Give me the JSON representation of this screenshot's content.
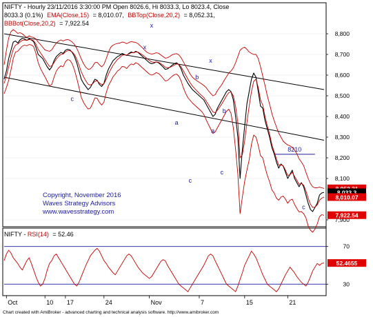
{
  "header": {
    "line1_prefix": "NIFTY - Hourly 23/11/2016 3:30:00 PM Open 8026.6, Hi 8033.3, Lo 8023.4, Close",
    "line2_black": "8033.3 (0.1%)",
    "line2_ema": "EMA(Close,15)",
    "line2_ema_value": "= 8,010.07,",
    "line2_bbtop": "BBTop(Close,20,2)",
    "line2_bbtop_value": "= 8,052.31,",
    "line3_bbbot": "BBBot(Close,20,2)",
    "line3_bbbot_value": "= 7,922.54"
  },
  "copyright": {
    "line1": "Copyright, November 2016",
    "line2": "Waves Strategy Advisors",
    "line3": "www.wavesstrategy.com"
  },
  "footer": "Chart created with AmiBroker - advanced charting and technical analysis software. http://www.amibroker.com",
  "colors": {
    "price": "#000000",
    "bands": "#c00000",
    "wave_labels": "#1a1aa0",
    "copyright_text": "#1a1aa0",
    "price_badge": "#000000",
    "band_badge": "#e00000",
    "rsi_line": "#c00000"
  },
  "chart_data": {
    "type": "line",
    "price_panel": {
      "ylim": [
        7880,
        8870
      ],
      "yticks": [
        8800,
        8700,
        8600,
        8500,
        8400,
        8300,
        8200,
        8100,
        7900
      ],
      "ytick_labels": [
        "8,800",
        "8,700",
        "8,600",
        "8,500",
        "8,400",
        "8,300",
        "8,200",
        "8,100",
        "7,900"
      ],
      "series": [
        {
          "id": "price",
          "color": "#000000",
          "values": [
            8580,
            8620,
            8680,
            8720,
            8760,
            8765,
            8755,
            8770,
            8778,
            8775,
            8768,
            8775,
            8770,
            8762,
            8735,
            8700,
            8690,
            8680,
            8660,
            8640,
            8625,
            8640,
            8670,
            8690,
            8700,
            8710,
            8705,
            8720,
            8725,
            8722,
            8710,
            8690,
            8660,
            8620,
            8580,
            8560,
            8545,
            8530,
            8540,
            8560,
            8580,
            8575,
            8555,
            8545,
            8560,
            8600,
            8630,
            8650,
            8670,
            8680,
            8690,
            8695,
            8705,
            8700,
            8695,
            8705,
            8712,
            8708,
            8715,
            8710,
            8700,
            8690,
            8680,
            8670,
            8660,
            8655,
            8658,
            8664,
            8660,
            8650,
            8640,
            8628,
            8630,
            8638,
            8648,
            8655,
            8660,
            8650,
            8630,
            8600,
            8580,
            8560,
            8545,
            8530,
            8520,
            8510,
            8500,
            8490,
            8480,
            8460,
            8440,
            8420,
            8400,
            8410,
            8440,
            8460,
            8480,
            8500,
            8520,
            8530,
            8520,
            8480,
            8400,
            8300,
            8100,
            8240,
            8350,
            8460,
            8520,
            8580,
            8610,
            8590,
            8520,
            8450,
            8440,
            8380,
            8340,
            8300,
            8250,
            8220,
            8180,
            8150,
            8170,
            8160,
            8130,
            8100,
            8120,
            8140,
            8100,
            8080,
            8060,
            8080,
            8060,
            8020,
            7980,
            7950,
            7940,
            7960,
            7980,
            8020,
            8030,
            8033
          ]
        },
        {
          "id": "bb_top",
          "color": "#c00000",
          "values": [
            8650,
            8720,
            8780,
            8810,
            8820,
            8812,
            8802,
            8805,
            8800,
            8790,
            8782,
            8790,
            8785,
            8782,
            8775,
            8760,
            8748,
            8735,
            8722,
            8718,
            8715,
            8722,
            8740,
            8755,
            8765,
            8770,
            8765,
            8770,
            8772,
            8768,
            8760,
            8748,
            8730,
            8705,
            8678,
            8655,
            8638,
            8628,
            8630,
            8642,
            8660,
            8662,
            8650,
            8640,
            8652,
            8680,
            8712,
            8735,
            8745,
            8750,
            8753,
            8755,
            8760,
            8758,
            8752,
            8758,
            8762,
            8760,
            8758,
            8752,
            8742,
            8732,
            8720,
            8710,
            8705,
            8702,
            8704,
            8708,
            8706,
            8698,
            8690,
            8682,
            8684,
            8690,
            8698,
            8702,
            8704,
            8698,
            8684,
            8664,
            8644,
            8625,
            8605,
            8590,
            8580,
            8572,
            8565,
            8558,
            8550,
            8540,
            8525,
            8512,
            8500,
            8505,
            8525,
            8540,
            8555,
            8575,
            8592,
            8610,
            8620,
            8635,
            8660,
            8690,
            8720,
            8730,
            8735,
            8725,
            8712,
            8705,
            8700,
            8700,
            8680,
            8640,
            8595,
            8550,
            8500,
            8460,
            8415,
            8380,
            8350,
            8320,
            8300,
            8280,
            8270,
            8262,
            8258,
            8250,
            8238,
            8220,
            8195,
            8180,
            8162,
            8130,
            8100,
            8075,
            8060,
            8055,
            8055,
            8058,
            8055,
            8052
          ]
        },
        {
          "id": "bb_bot",
          "color": "#c00000",
          "values": [
            8510,
            8540,
            8575,
            8625,
            8680,
            8712,
            8715,
            8728,
            8740,
            8745,
            8742,
            8748,
            8746,
            8738,
            8705,
            8660,
            8632,
            8612,
            8592,
            8570,
            8548,
            8555,
            8590,
            8620,
            8635,
            8645,
            8640,
            8665,
            8675,
            8672,
            8655,
            8625,
            8585,
            8540,
            8492,
            8468,
            8450,
            8436,
            8440,
            8462,
            8490,
            8488,
            8468,
            8455,
            8470,
            8515,
            8550,
            8570,
            8592,
            8605,
            8620,
            8628,
            8642,
            8640,
            8632,
            8645,
            8654,
            8650,
            8660,
            8655,
            8645,
            8635,
            8625,
            8615,
            8605,
            8600,
            8604,
            8612,
            8608,
            8598,
            8585,
            8572,
            8574,
            8584,
            8594,
            8602,
            8605,
            8595,
            8572,
            8538,
            8512,
            8490,
            8478,
            8465,
            8455,
            8445,
            8435,
            8425,
            8410,
            8385,
            8362,
            8340,
            8318,
            8325,
            8345,
            8365,
            8385,
            8405,
            8425,
            8435,
            8415,
            8345,
            8240,
            8120,
            7930,
            8010,
            8085,
            8140,
            8190,
            8265,
            8310,
            8300,
            8260,
            8210,
            8200,
            8155,
            8115,
            8085,
            8045,
            8030,
            8005,
            7995,
            8010,
            8015,
            8000,
            7980,
            7995,
            8000,
            7975,
            7955,
            7938,
            7940,
            7930,
            7910,
            7870,
            7850,
            7840,
            7855,
            7880,
            7915,
            7925,
            7922
          ]
        },
        {
          "id": "ema",
          "color": "#c00000",
          "values": [
            8560,
            8595,
            8640,
            8685,
            8725,
            8745,
            8750,
            8760,
            8768,
            8770,
            8768,
            8772,
            8771,
            8766,
            8750,
            8725,
            8708,
            8692,
            8675,
            8658,
            8642,
            8645,
            8660,
            8678,
            8690,
            8700,
            8702,
            8712,
            8718,
            8718,
            8712,
            8700,
            8678,
            8648,
            8616,
            8592,
            8572,
            8556,
            8552,
            8558,
            8570,
            8572,
            8562,
            8554,
            8558,
            8580,
            8606,
            8628,
            8648,
            8662,
            8676,
            8685,
            8696,
            8698,
            8697,
            8702,
            8708,
            8708,
            8712,
            8711,
            8705,
            8698,
            8689,
            8680,
            8671,
            8664,
            8662,
            8664,
            8662,
            8656,
            8648,
            8638,
            8636,
            8637,
            8642,
            8648,
            8654,
            8652,
            8640,
            8620,
            8600,
            8580,
            8563,
            8547,
            8535,
            8523,
            8512,
            8502,
            8492,
            8475,
            8458,
            8440,
            8422,
            8418,
            8430,
            8445,
            8462,
            8480,
            8500,
            8515,
            8518,
            8500,
            8450,
            8370,
            8200,
            8215,
            8280,
            8370,
            8450,
            8520,
            8570,
            8580,
            8540,
            8480,
            8455,
            8400,
            8355,
            8315,
            8265,
            8230,
            8195,
            8165,
            8165,
            8162,
            8140,
            8115,
            8118,
            8130,
            8110,
            8092,
            8072,
            8076,
            8068,
            8040,
            8005,
            7975,
            7960,
            7962,
            7972,
            7995,
            8005,
            8010
          ]
        }
      ],
      "trendlines": [
        {
          "id": "upper-channel",
          "from": [
            0,
            8800
          ],
          "to": [
            141,
            8530
          ]
        },
        {
          "id": "lower-channel",
          "from": [
            0,
            8590
          ],
          "to": [
            141,
            8285
          ]
        },
        {
          "id": "level-8210",
          "from": [
            119,
            8217
          ],
          "to": [
            137,
            8217
          ],
          "label": "8210"
        }
      ],
      "wave_labels": [
        {
          "text": "c",
          "x": 30,
          "y": 8475
        },
        {
          "text": "x",
          "x": 62,
          "y": 8725
        },
        {
          "text": "x",
          "x": 65,
          "y": 8830
        },
        {
          "text": "a",
          "x": 76,
          "y": 8360
        },
        {
          "text": "b",
          "x": 85,
          "y": 8580
        },
        {
          "text": "x",
          "x": 91,
          "y": 8660
        },
        {
          "text": "a",
          "x": 92,
          "y": 8320
        },
        {
          "text": "b",
          "x": 97,
          "y": 8416
        },
        {
          "text": "c",
          "x": 82,
          "y": 8080
        },
        {
          "text": "c",
          "x": 96,
          "y": 8120
        },
        {
          "text": "c",
          "x": 132,
          "y": 7952
        }
      ],
      "badges": [
        {
          "text": "8,052.31",
          "value": 8052.31,
          "color": "#e00000",
          "text_color": "#ffffff"
        },
        {
          "text": "8,033.3",
          "value": 8033.3,
          "color": "#000000",
          "text_color": "#ffffff"
        },
        {
          "text": "8,010.07",
          "value": 8010.07,
          "color": "#e00000",
          "text_color": "#ffffff"
        },
        {
          "text": "7,922.54",
          "value": 7922.54,
          "color": "#e00000",
          "text_color": "#ffffff"
        }
      ]
    },
    "rsi_panel": {
      "title_prefix": "NIFTY - ",
      "title_indicator": "RSI(14)",
      "title_value": "= 52.46",
      "ylim": [
        20,
        80
      ],
      "yticks": [
        70,
        30
      ],
      "ytick_labels": [
        "70",
        "30"
      ],
      "reference_levels": [
        70,
        30
      ],
      "badge": {
        "text": "52.4655",
        "value": 52.4655,
        "color": "#e00000",
        "text_color": "#ffffff"
      },
      "values": [
        55,
        62,
        66,
        63,
        58,
        55,
        52,
        48,
        45,
        50,
        55,
        58,
        52,
        45,
        38,
        32,
        28,
        30,
        36,
        45,
        52,
        55,
        60,
        62,
        58,
        54,
        50,
        46,
        42,
        38,
        34,
        30,
        28,
        32,
        38,
        44,
        50,
        55,
        60,
        63,
        66,
        68,
        65,
        60,
        55,
        52,
        48,
        45,
        42,
        40,
        44,
        48,
        52,
        56,
        60,
        62,
        60,
        56,
        52,
        48,
        45,
        42,
        40,
        38,
        36,
        38,
        42,
        46,
        50,
        54,
        56,
        55,
        50,
        46,
        42,
        38,
        34,
        30,
        28,
        26,
        24,
        22,
        26,
        30,
        34,
        38,
        42,
        46,
        50,
        55,
        60,
        62,
        60,
        55,
        50,
        45,
        40,
        35,
        30,
        28,
        26,
        24,
        22,
        28,
        35,
        42,
        50,
        55,
        60,
        65,
        62,
        58,
        52,
        46,
        40,
        35,
        30,
        28,
        26,
        24,
        22,
        25,
        30,
        35,
        40,
        44,
        48,
        45,
        42,
        38,
        35,
        32,
        30,
        28,
        32,
        38,
        44,
        48,
        52,
        50,
        52,
        52.46
      ]
    },
    "x_axis": {
      "ticks": [
        {
          "label": "Oct",
          "index": 1
        },
        {
          "label": "10",
          "index": 18
        },
        {
          "label": "17",
          "index": 27
        },
        {
          "label": "24",
          "index": 44
        },
        {
          "label": "Nov",
          "index": 64
        },
        {
          "label": "7",
          "index": 86
        },
        {
          "label": "15",
          "index": 106
        },
        {
          "label": "21",
          "index": 125
        }
      ]
    }
  }
}
